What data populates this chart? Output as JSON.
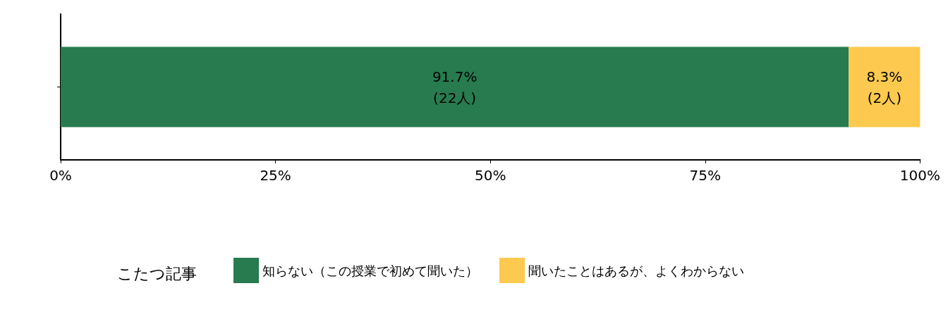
{
  "chart_data": {
    "type": "bar",
    "orientation": "horizontal",
    "stacked": true,
    "categories": [
      null
    ],
    "series": [
      {
        "name": "知らない（この授業で初めて聞いた）",
        "color": "#277b4e",
        "values": [
          91.7
        ],
        "value_labels": [
          "91.7%\n(22人)"
        ]
      },
      {
        "name": "聞いたことはあるが、よくわからない",
        "color": "#fdc94f",
        "values": [
          8.3
        ],
        "value_labels": [
          "8.3%\n(2人)"
        ]
      }
    ],
    "xlim": [
      0,
      100
    ],
    "xticks": [
      {
        "value": 0,
        "label": "0%"
      },
      {
        "value": 25,
        "label": "25%"
      },
      {
        "value": 50,
        "label": "50%"
      },
      {
        "value": 75,
        "label": "75%"
      },
      {
        "value": 100,
        "label": "100%"
      }
    ],
    "legend": "bottom",
    "legend_title": "こたつ記事",
    "grid": false
  }
}
